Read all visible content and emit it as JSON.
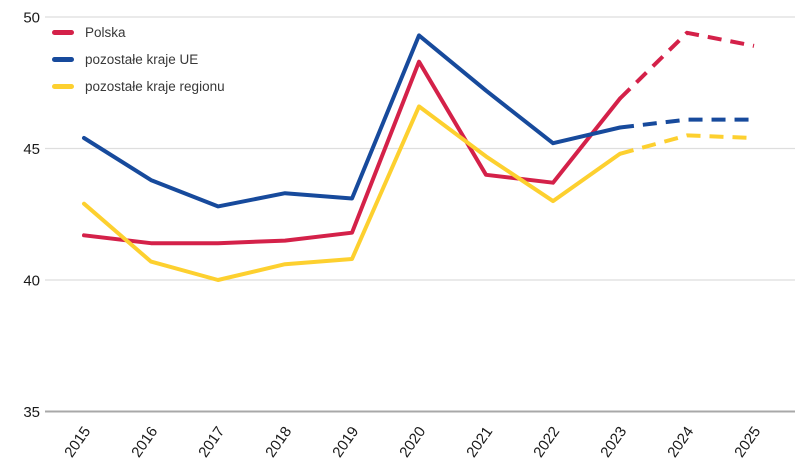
{
  "chart_data": {
    "type": "line",
    "title": "",
    "xlabel": "",
    "ylabel": "",
    "x": [
      2015,
      2016,
      2017,
      2018,
      2019,
      2020,
      2021,
      2022,
      2023,
      2024,
      2025
    ],
    "series": [
      {
        "name": "Polska",
        "color": "#d42149",
        "values": [
          41.7,
          41.4,
          41.4,
          41.5,
          41.8,
          48.3,
          44.0,
          43.7,
          46.9,
          49.4,
          48.9
        ]
      },
      {
        "name": "pozostałe kraje UE",
        "color": "#174a9c",
        "values": [
          45.4,
          43.8,
          42.8,
          43.3,
          43.1,
          49.3,
          47.2,
          45.2,
          45.8,
          46.1,
          46.1
        ]
      },
      {
        "name": "pozostałe kraje regionu",
        "color": "#fdd02f",
        "values": [
          42.9,
          40.7,
          40.0,
          40.6,
          40.8,
          46.6,
          44.7,
          43.0,
          44.8,
          45.5,
          45.4
        ]
      }
    ],
    "forecast_start_x": 2023,
    "forecast_line_style": "dashed",
    "ylim": [
      35,
      50
    ],
    "yticks": [
      35,
      40,
      45,
      50
    ],
    "grid": true,
    "legend_position": "top-left",
    "colors": {
      "gridline": "#dedede",
      "axis_line": "#a8a8a8",
      "tick_text": "#1a1a1a"
    }
  }
}
